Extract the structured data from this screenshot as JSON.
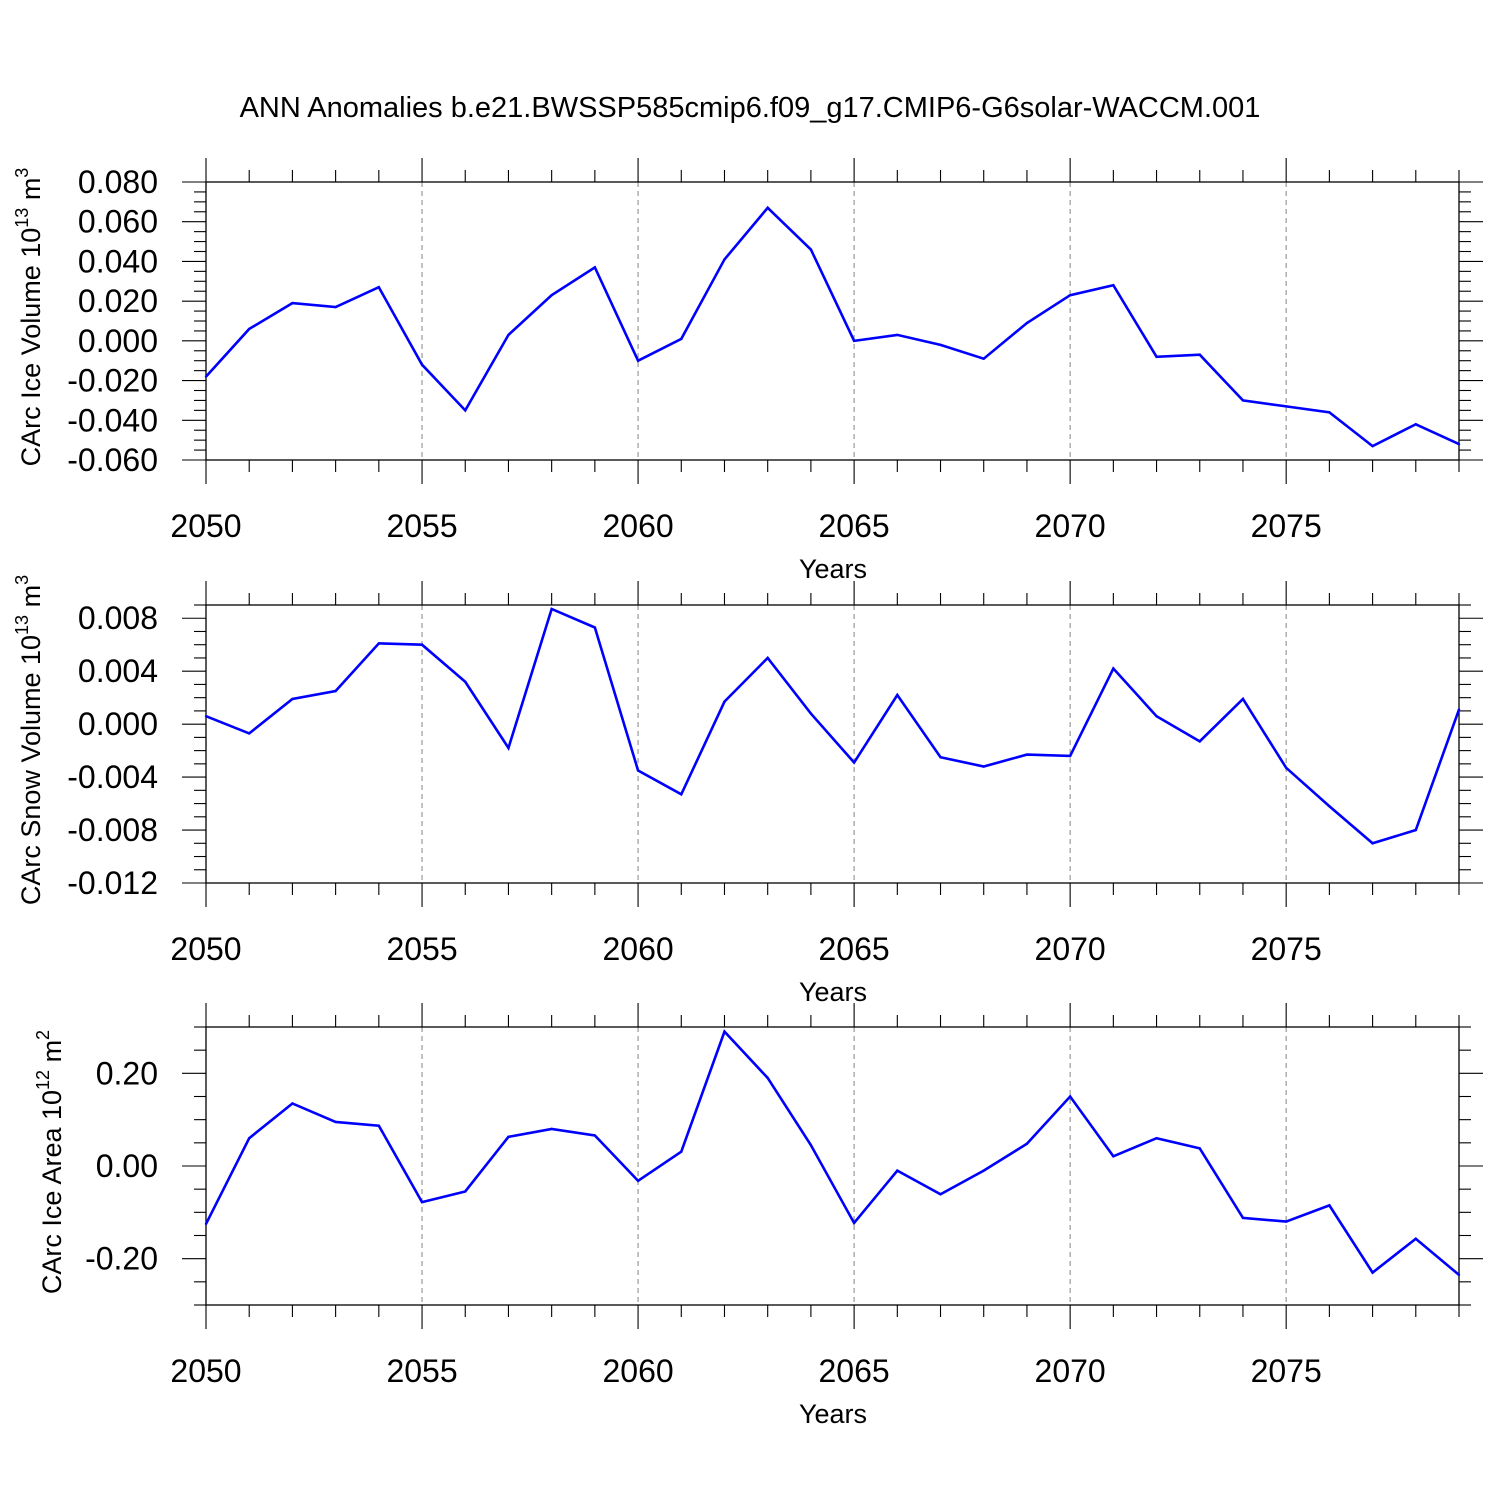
{
  "figure": {
    "title": "ANN Anomalies b.e21.BWSSP585cmip6.f09_g17.CMIP6-G6solar-WACCM.001"
  },
  "chart_data": [
    {
      "type": "line",
      "ylabel": "CArc Ice Volume 10",
      "ylabel_sup": "13",
      "ylabel_unit": " m",
      "ylabel_unit_sup": "3",
      "xlabel": "Years",
      "xlim": [
        2050,
        2079
      ],
      "ylim": [
        -0.06,
        0.08
      ],
      "xticks": [
        2050,
        2055,
        2060,
        2065,
        2070,
        2075
      ],
      "xtick_labels": [
        "2050",
        "2055",
        "2060",
        "2065",
        "2070",
        "2075"
      ],
      "yticks": [
        -0.06,
        -0.04,
        -0.02,
        0.0,
        0.02,
        0.04,
        0.06,
        0.08
      ],
      "ytick_labels": [
        "-0.060",
        "-0.040",
        "-0.020",
        "0.000",
        "0.020",
        "0.040",
        "0.060",
        "0.080"
      ],
      "yminor": 0.005,
      "line_color": "#0000ff",
      "grid": "vertical dashed at major x ticks",
      "x": [
        2050,
        2051,
        2052,
        2053,
        2054,
        2055,
        2056,
        2057,
        2058,
        2059,
        2060,
        2061,
        2062,
        2063,
        2064,
        2065,
        2066,
        2067,
        2068,
        2069,
        2070,
        2071,
        2072,
        2073,
        2074,
        2075,
        2076,
        2077,
        2078,
        2079
      ],
      "y": [
        -0.018,
        0.006,
        0.019,
        0.017,
        0.027,
        -0.012,
        -0.035,
        0.003,
        0.023,
        0.037,
        -0.01,
        0.001,
        0.041,
        0.067,
        0.046,
        0.0,
        0.003,
        -0.002,
        -0.009,
        0.009,
        0.023,
        0.028,
        -0.008,
        -0.007,
        -0.03,
        -0.033,
        -0.036,
        -0.053,
        -0.042,
        -0.052
      ]
    },
    {
      "type": "line",
      "ylabel": "CArc Snow Volume 10",
      "ylabel_sup": "13",
      "ylabel_unit": " m",
      "ylabel_unit_sup": "3",
      "xlabel": "Years",
      "xlim": [
        2050,
        2079
      ],
      "ylim": [
        -0.012,
        0.009
      ],
      "xticks": [
        2050,
        2055,
        2060,
        2065,
        2070,
        2075
      ],
      "xtick_labels": [
        "2050",
        "2055",
        "2060",
        "2065",
        "2070",
        "2075"
      ],
      "yticks": [
        -0.012,
        -0.008,
        -0.004,
        0.0,
        0.004,
        0.008
      ],
      "ytick_labels": [
        "-0.012",
        "-0.008",
        "-0.004",
        "0.000",
        "0.004",
        "0.008"
      ],
      "yminor": 0.001,
      "line_color": "#0000ff",
      "grid": "vertical dashed at major x ticks",
      "x": [
        2050,
        2051,
        2052,
        2053,
        2054,
        2055,
        2056,
        2057,
        2058,
        2059,
        2060,
        2061,
        2062,
        2063,
        2064,
        2065,
        2066,
        2067,
        2068,
        2069,
        2070,
        2071,
        2072,
        2073,
        2074,
        2075,
        2076,
        2077,
        2078,
        2079
      ],
      "y": [
        0.0006,
        -0.0007,
        0.0019,
        0.0025,
        0.0061,
        0.006,
        0.0032,
        -0.0018,
        0.0087,
        0.0073,
        -0.0035,
        -0.0053,
        0.0017,
        0.005,
        0.0008,
        -0.0029,
        0.0022,
        -0.0025,
        -0.0032,
        -0.0023,
        -0.0024,
        0.0042,
        0.0006,
        -0.0013,
        0.0019,
        -0.0033,
        -0.0062,
        -0.009,
        -0.008,
        0.0011
      ]
    },
    {
      "type": "line",
      "ylabel": "CArc Ice Area 10",
      "ylabel_sup": "12",
      "ylabel_unit": " m",
      "ylabel_unit_sup": "2",
      "xlabel": "Years",
      "xlim": [
        2050,
        2079
      ],
      "ylim": [
        -0.3,
        0.3
      ],
      "xticks": [
        2050,
        2055,
        2060,
        2065,
        2070,
        2075
      ],
      "xtick_labels": [
        "2050",
        "2055",
        "2060",
        "2065",
        "2070",
        "2075"
      ],
      "yticks": [
        -0.2,
        0.0,
        0.2
      ],
      "ytick_labels": [
        "-0.20",
        "0.00",
        "0.20"
      ],
      "yminor": 0.05,
      "line_color": "#0000ff",
      "grid": "vertical dashed at major x ticks",
      "x": [
        2050,
        2051,
        2052,
        2053,
        2054,
        2055,
        2056,
        2057,
        2058,
        2059,
        2060,
        2061,
        2062,
        2063,
        2064,
        2065,
        2066,
        2067,
        2068,
        2069,
        2070,
        2071,
        2072,
        2073,
        2074,
        2075,
        2076,
        2077,
        2078,
        2079
      ],
      "y": [
        -0.125,
        0.06,
        0.135,
        0.095,
        0.087,
        -0.078,
        -0.055,
        0.063,
        0.08,
        0.066,
        -0.032,
        0.031,
        0.29,
        0.19,
        0.045,
        -0.123,
        -0.01,
        -0.061,
        -0.01,
        0.048,
        0.15,
        0.021,
        0.06,
        0.038,
        -0.112,
        -0.12,
        -0.085,
        -0.23,
        -0.157,
        -0.235
      ]
    }
  ]
}
